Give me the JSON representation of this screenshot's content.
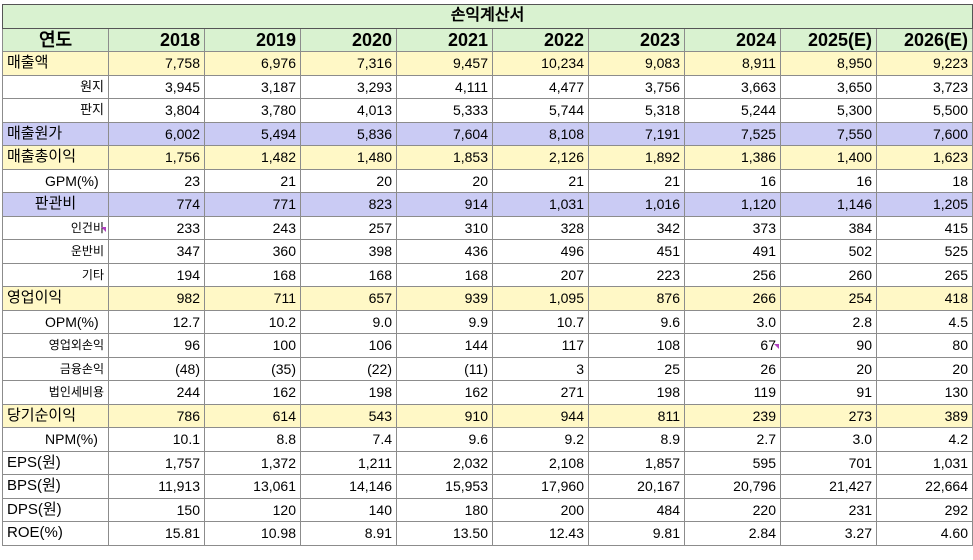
{
  "title": "손익계산서",
  "header": {
    "label": "연도",
    "years": [
      "2018",
      "2019",
      "2020",
      "2021",
      "2022",
      "2023",
      "2024",
      "2025(E)",
      "2026(E)"
    ]
  },
  "rows": [
    {
      "label": "매출액",
      "style": "hl-yellow main",
      "values": [
        "7,758",
        "6,976",
        "7,316",
        "9,457",
        "10,234",
        "9,083",
        "8,911",
        "8,950",
        "9,223"
      ]
    },
    {
      "label": "원지",
      "style": "sub",
      "values": [
        "3,945",
        "3,187",
        "3,293",
        "4,111",
        "4,477",
        "3,756",
        "3,663",
        "3,650",
        "3,723"
      ]
    },
    {
      "label": "판지",
      "style": "sub",
      "values": [
        "3,804",
        "3,780",
        "4,013",
        "5,333",
        "5,744",
        "5,318",
        "5,244",
        "5,300",
        "5,500"
      ]
    },
    {
      "label": "매출원가",
      "style": "hl-purple main",
      "values": [
        "6,002",
        "5,494",
        "5,836",
        "7,604",
        "8,108",
        "7,191",
        "7,525",
        "7,550",
        "7,600"
      ]
    },
    {
      "label": "매출총이익",
      "style": "hl-yellow main",
      "values": [
        "1,756",
        "1,482",
        "1,480",
        "1,853",
        "2,126",
        "1,892",
        "1,386",
        "1,400",
        "1,623"
      ]
    },
    {
      "label": "GPM(%)",
      "style": "ratio",
      "values": [
        "23",
        "21",
        "20",
        "20",
        "21",
        "21",
        "16",
        "16",
        "18"
      ]
    },
    {
      "label": "판관비",
      "style": "hl-purple main centerlabel",
      "values": [
        "774",
        "771",
        "823",
        "914",
        "1,031",
        "1,016",
        "1,120",
        "1,146",
        "1,205"
      ]
    },
    {
      "label": "인건비",
      "style": "small",
      "values": [
        "233",
        "243",
        "257",
        "310",
        "328",
        "342",
        "373",
        "384",
        "415"
      ]
    },
    {
      "label": "운반비",
      "style": "small",
      "values": [
        "347",
        "360",
        "398",
        "436",
        "496",
        "451",
        "491",
        "502",
        "525"
      ]
    },
    {
      "label": "기타",
      "style": "small",
      "values": [
        "194",
        "168",
        "168",
        "168",
        "207",
        "223",
        "256",
        "260",
        "265"
      ]
    },
    {
      "label": "영업이익",
      "style": "hl-yellow main",
      "values": [
        "982",
        "711",
        "657",
        "939",
        "1,095",
        "876",
        "266",
        "254",
        "418"
      ]
    },
    {
      "label": "OPM(%)",
      "style": "ratio",
      "values": [
        "12.7",
        "10.2",
        "9.0",
        "9.9",
        "10.7",
        "9.6",
        "3.0",
        "2.8",
        "4.5"
      ]
    },
    {
      "label": "영업외손익",
      "style": "small",
      "values": [
        "96",
        "100",
        "106",
        "144",
        "117",
        "108",
        "67",
        "90",
        "80"
      ]
    },
    {
      "label": "금융손익",
      "style": "small",
      "values": [
        "(48)",
        "(35)",
        "(22)",
        "(11)",
        "3",
        "25",
        "26",
        "20",
        "20"
      ]
    },
    {
      "label": "법인세비용",
      "style": "small",
      "values": [
        "244",
        "162",
        "198",
        "162",
        "271",
        "198",
        "119",
        "91",
        "130"
      ]
    },
    {
      "label": "당기순이익",
      "style": "hl-yellow main",
      "values": [
        "786",
        "614",
        "543",
        "910",
        "944",
        "811",
        "239",
        "273",
        "389"
      ]
    },
    {
      "label": "NPM(%)",
      "style": "ratio",
      "values": [
        "10.1",
        "8.8",
        "7.4",
        "9.6",
        "9.2",
        "8.9",
        "2.7",
        "3.0",
        "4.2"
      ]
    },
    {
      "label": "EPS(원)",
      "style": "pershare",
      "values": [
        "1,757",
        "1,372",
        "1,211",
        "2,032",
        "2,108",
        "1,857",
        "595",
        "701",
        "1,031"
      ]
    },
    {
      "label": "BPS(원)",
      "style": "pershare",
      "values": [
        "11,913",
        "13,061",
        "14,146",
        "15,953",
        "17,960",
        "20,167",
        "20,796",
        "21,427",
        "22,664"
      ]
    },
    {
      "label": "DPS(원)",
      "style": "pershare",
      "values": [
        "150",
        "120",
        "140",
        "180",
        "200",
        "484",
        "220",
        "231",
        "292"
      ]
    },
    {
      "label": "ROE(%)",
      "style": "pershare",
      "values": [
        "15.81",
        "10.98",
        "8.91",
        "13.50",
        "12.43",
        "9.81",
        "2.84",
        "3.27",
        "4.60"
      ]
    }
  ]
}
